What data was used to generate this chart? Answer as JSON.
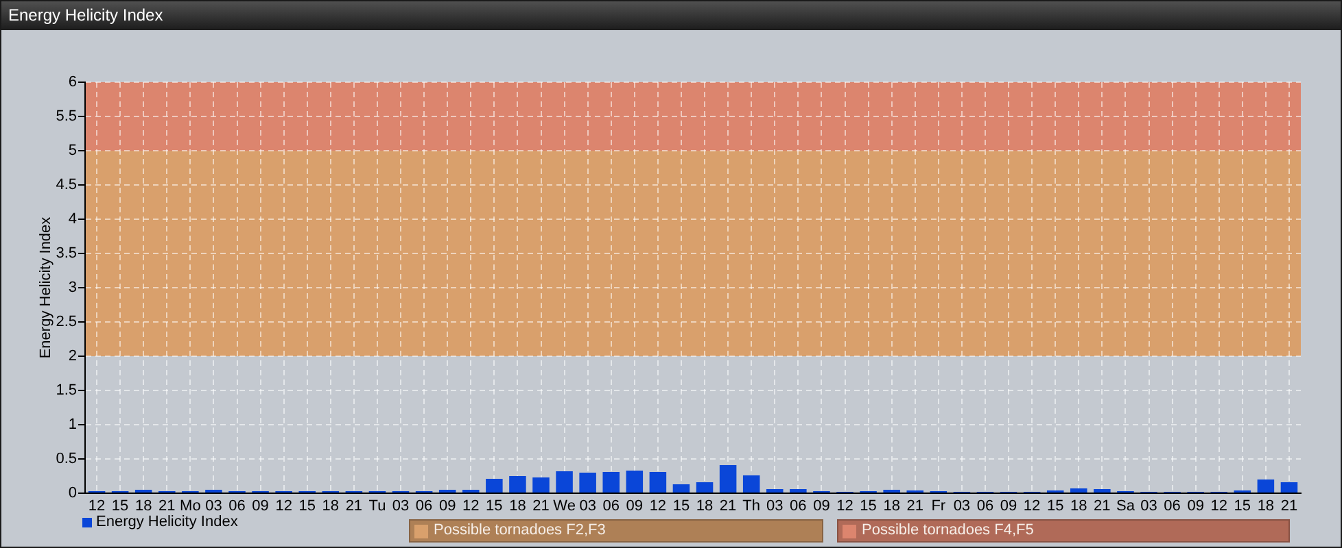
{
  "chart_data": {
    "type": "bar",
    "title": "Energy Helicity Index",
    "ylabel": "Energy Helicity Index",
    "categories": [
      "12",
      "15",
      "18",
      "21",
      "Mo",
      "03",
      "06",
      "09",
      "12",
      "15",
      "18",
      "21",
      "Tu",
      "03",
      "06",
      "09",
      "12",
      "15",
      "18",
      "21",
      "We",
      "03",
      "06",
      "09",
      "12",
      "15",
      "18",
      "21",
      "Th",
      "03",
      "06",
      "09",
      "12",
      "15",
      "18",
      "21",
      "Fr",
      "03",
      "06",
      "09",
      "12",
      "15",
      "18",
      "21",
      "Sa",
      "03",
      "06",
      "09",
      "12",
      "15",
      "18",
      "21"
    ],
    "series": [
      {
        "name": "Energy Helicity Index",
        "color": "#0a46d8",
        "values": [
          0.03,
          0.03,
          0.05,
          0.03,
          0.03,
          0.05,
          0.03,
          0.03,
          0.03,
          0.03,
          0.03,
          0.03,
          0.03,
          0.03,
          0.03,
          0.05,
          0.05,
          0.21,
          0.25,
          0.23,
          0.32,
          0.3,
          0.31,
          0.33,
          0.31,
          0.13,
          0.16,
          0.41,
          0.26,
          0.06,
          0.06,
          0.03,
          0.02,
          0.03,
          0.05,
          0.04,
          0.03,
          0.02,
          0.02,
          0.02,
          0.02,
          0.04,
          0.07,
          0.06,
          0.03,
          0.02,
          0.02,
          0.02,
          0.02,
          0.04,
          0.2,
          0.16
        ]
      }
    ],
    "ylim": [
      0,
      6
    ],
    "yticks": [
      0,
      0.5,
      1,
      1.5,
      2,
      2.5,
      3,
      3.5,
      4,
      4.5,
      5,
      5.5,
      6
    ],
    "bands": [
      {
        "axis": "y",
        "from": 2,
        "to": 5,
        "label": "Possible tornadoes F2,F3",
        "color": "#d9a06c"
      },
      {
        "axis": "y",
        "from": 5,
        "to": 6,
        "label": "Possible tornadoes F4,F5",
        "color": "#dc856e"
      }
    ],
    "grid": true,
    "legend": "bottom left"
  }
}
